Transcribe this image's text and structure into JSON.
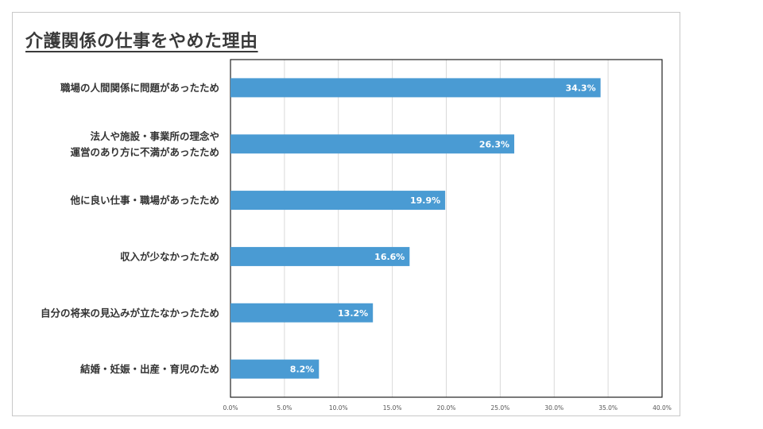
{
  "chart_data": {
    "type": "bar",
    "orientation": "horizontal",
    "title": "介護関係の仕事をやめた理由",
    "categories": [
      [
        "職場の人間関係に問題があったため"
      ],
      [
        "法人や施設・事業所の理念や",
        "運営のあり方に不満があったため"
      ],
      [
        "他に良い仕事・職場があったため"
      ],
      [
        "収入が少なかったため"
      ],
      [
        "自分の将来の見込みが立たなかったため"
      ],
      [
        "結婚・妊娠・出産・育児のため"
      ]
    ],
    "values": [
      34.3,
      26.3,
      19.9,
      16.6,
      13.2,
      8.2
    ],
    "value_labels": [
      "34.3%",
      "26.3%",
      "19.9%",
      "16.6%",
      "13.2%",
      "8.2%"
    ],
    "xlim": [
      0,
      40
    ],
    "x_ticks": [
      0,
      5,
      10,
      15,
      20,
      25,
      30,
      35,
      40
    ],
    "x_tick_labels": [
      "0.0%",
      "5.0%",
      "10.0%",
      "15.0%",
      "20.0%",
      "25.0%",
      "30.0%",
      "35.0%",
      "40.0%"
    ],
    "grid": "vertical",
    "bar_color": "#4a9bd3",
    "grid_color": "#d9d9d9"
  }
}
